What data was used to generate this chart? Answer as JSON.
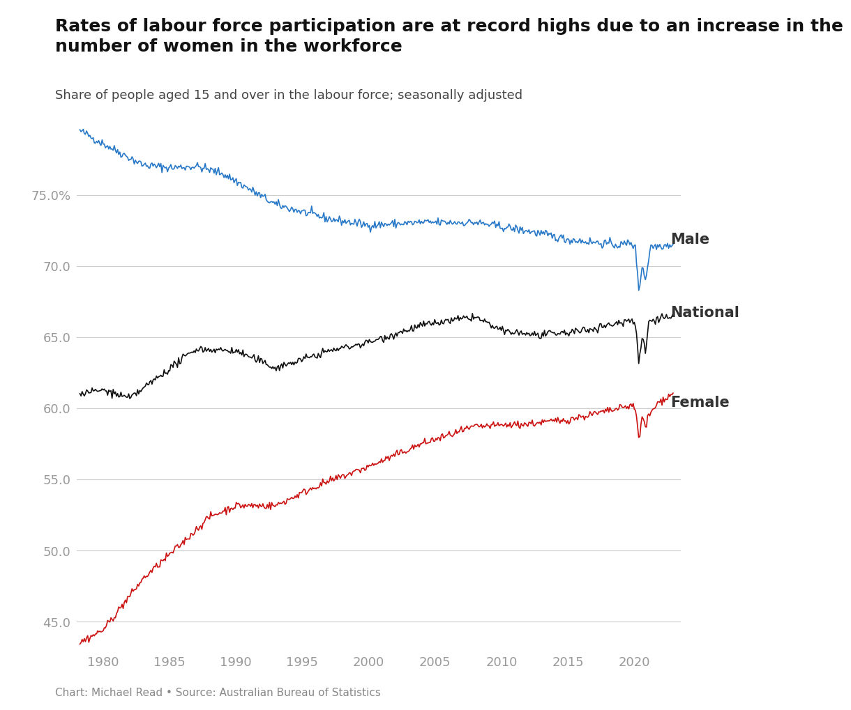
{
  "title": "Rates of labour force participation are at record highs due to an increase in the\nnumber of women in the workforce",
  "subtitle": "Share of people aged 15 and over in the labour force; seasonally adjusted",
  "footnote": "Chart: Michael Read • Source: Australian Bureau of Statistics",
  "male_color": "#2878c8",
  "female_color": "#cc1111",
  "national_color": "#111111",
  "label_color": "#333333",
  "background_color": "#ffffff",
  "grid_color": "#cccccc",
  "yticks": [
    45.0,
    50.0,
    55.0,
    60.0,
    65.0,
    70.0,
    75.0
  ],
  "xticks": [
    1980,
    1985,
    1990,
    1995,
    2000,
    2005,
    2010,
    2015,
    2020
  ],
  "ylim": [
    43.0,
    81.0
  ],
  "xlim": [
    1978.0,
    2023.5
  ],
  "title_fontsize": 18,
  "subtitle_fontsize": 13,
  "tick_fontsize": 13,
  "footnote_fontsize": 11,
  "label_fontsize": 15,
  "line_width": 1.2
}
